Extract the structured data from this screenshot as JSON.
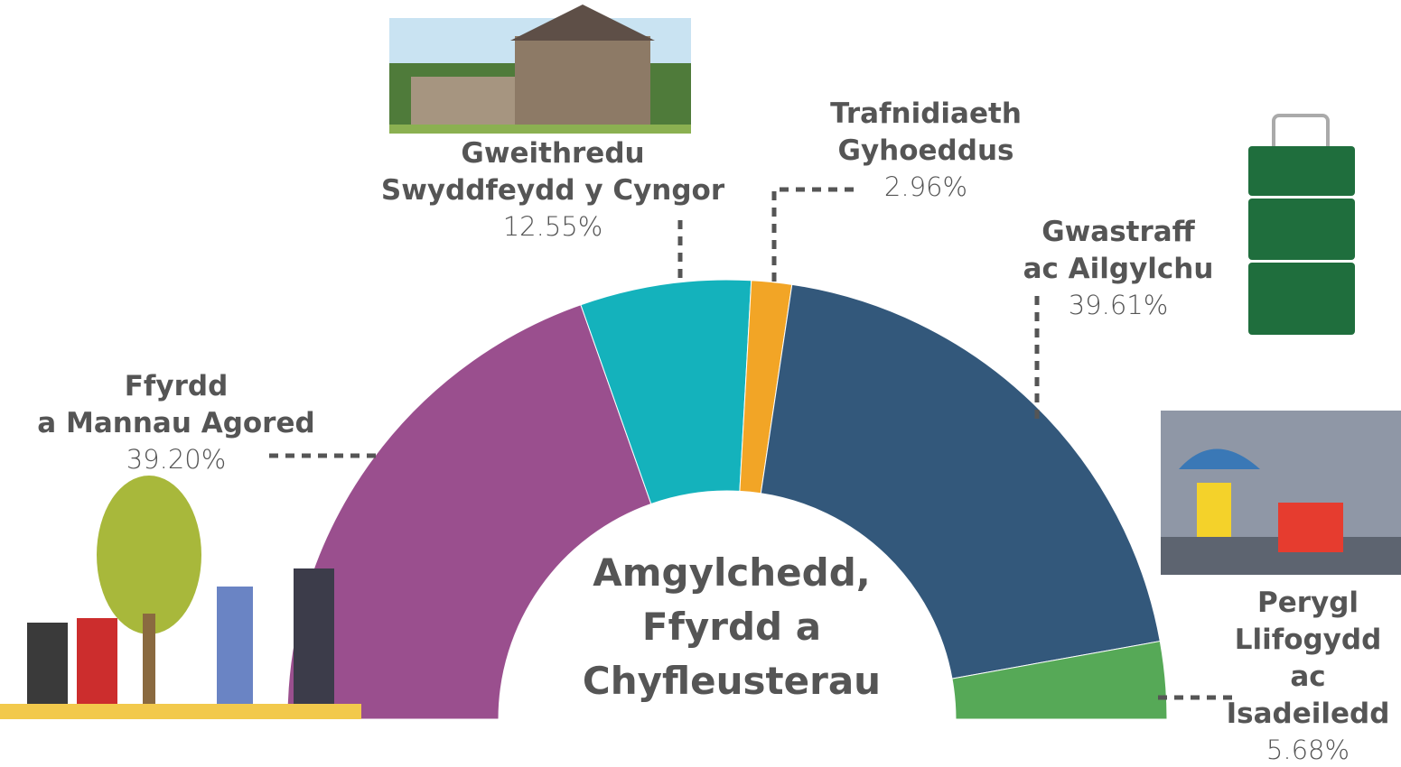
{
  "chart_data": {
    "type": "half-donut",
    "center_label": "Amgylchedd,\nFfyrdd a\nChyfleusterau",
    "categories": [
      "Ffyrdd\na Mannau Agored",
      "Gweithredu\nSwyddfeydd y Cyngor",
      "Trafnidiaeth\nGyhoeddus",
      "Gwastraff\nac Ailgylchu",
      "Perygl\nLlifogydd ac\nIsadeiledd"
    ],
    "values": [
      39.2,
      12.55,
      2.96,
      39.61,
      5.68
    ],
    "value_labels": [
      "39.20%",
      "12.55%",
      "2.96%",
      "39.61%",
      "5.68%"
    ],
    "colors": [
      "#9a4f8e",
      "#14b2bc",
      "#f2a526",
      "#33587b",
      "#56a957"
    ]
  }
}
